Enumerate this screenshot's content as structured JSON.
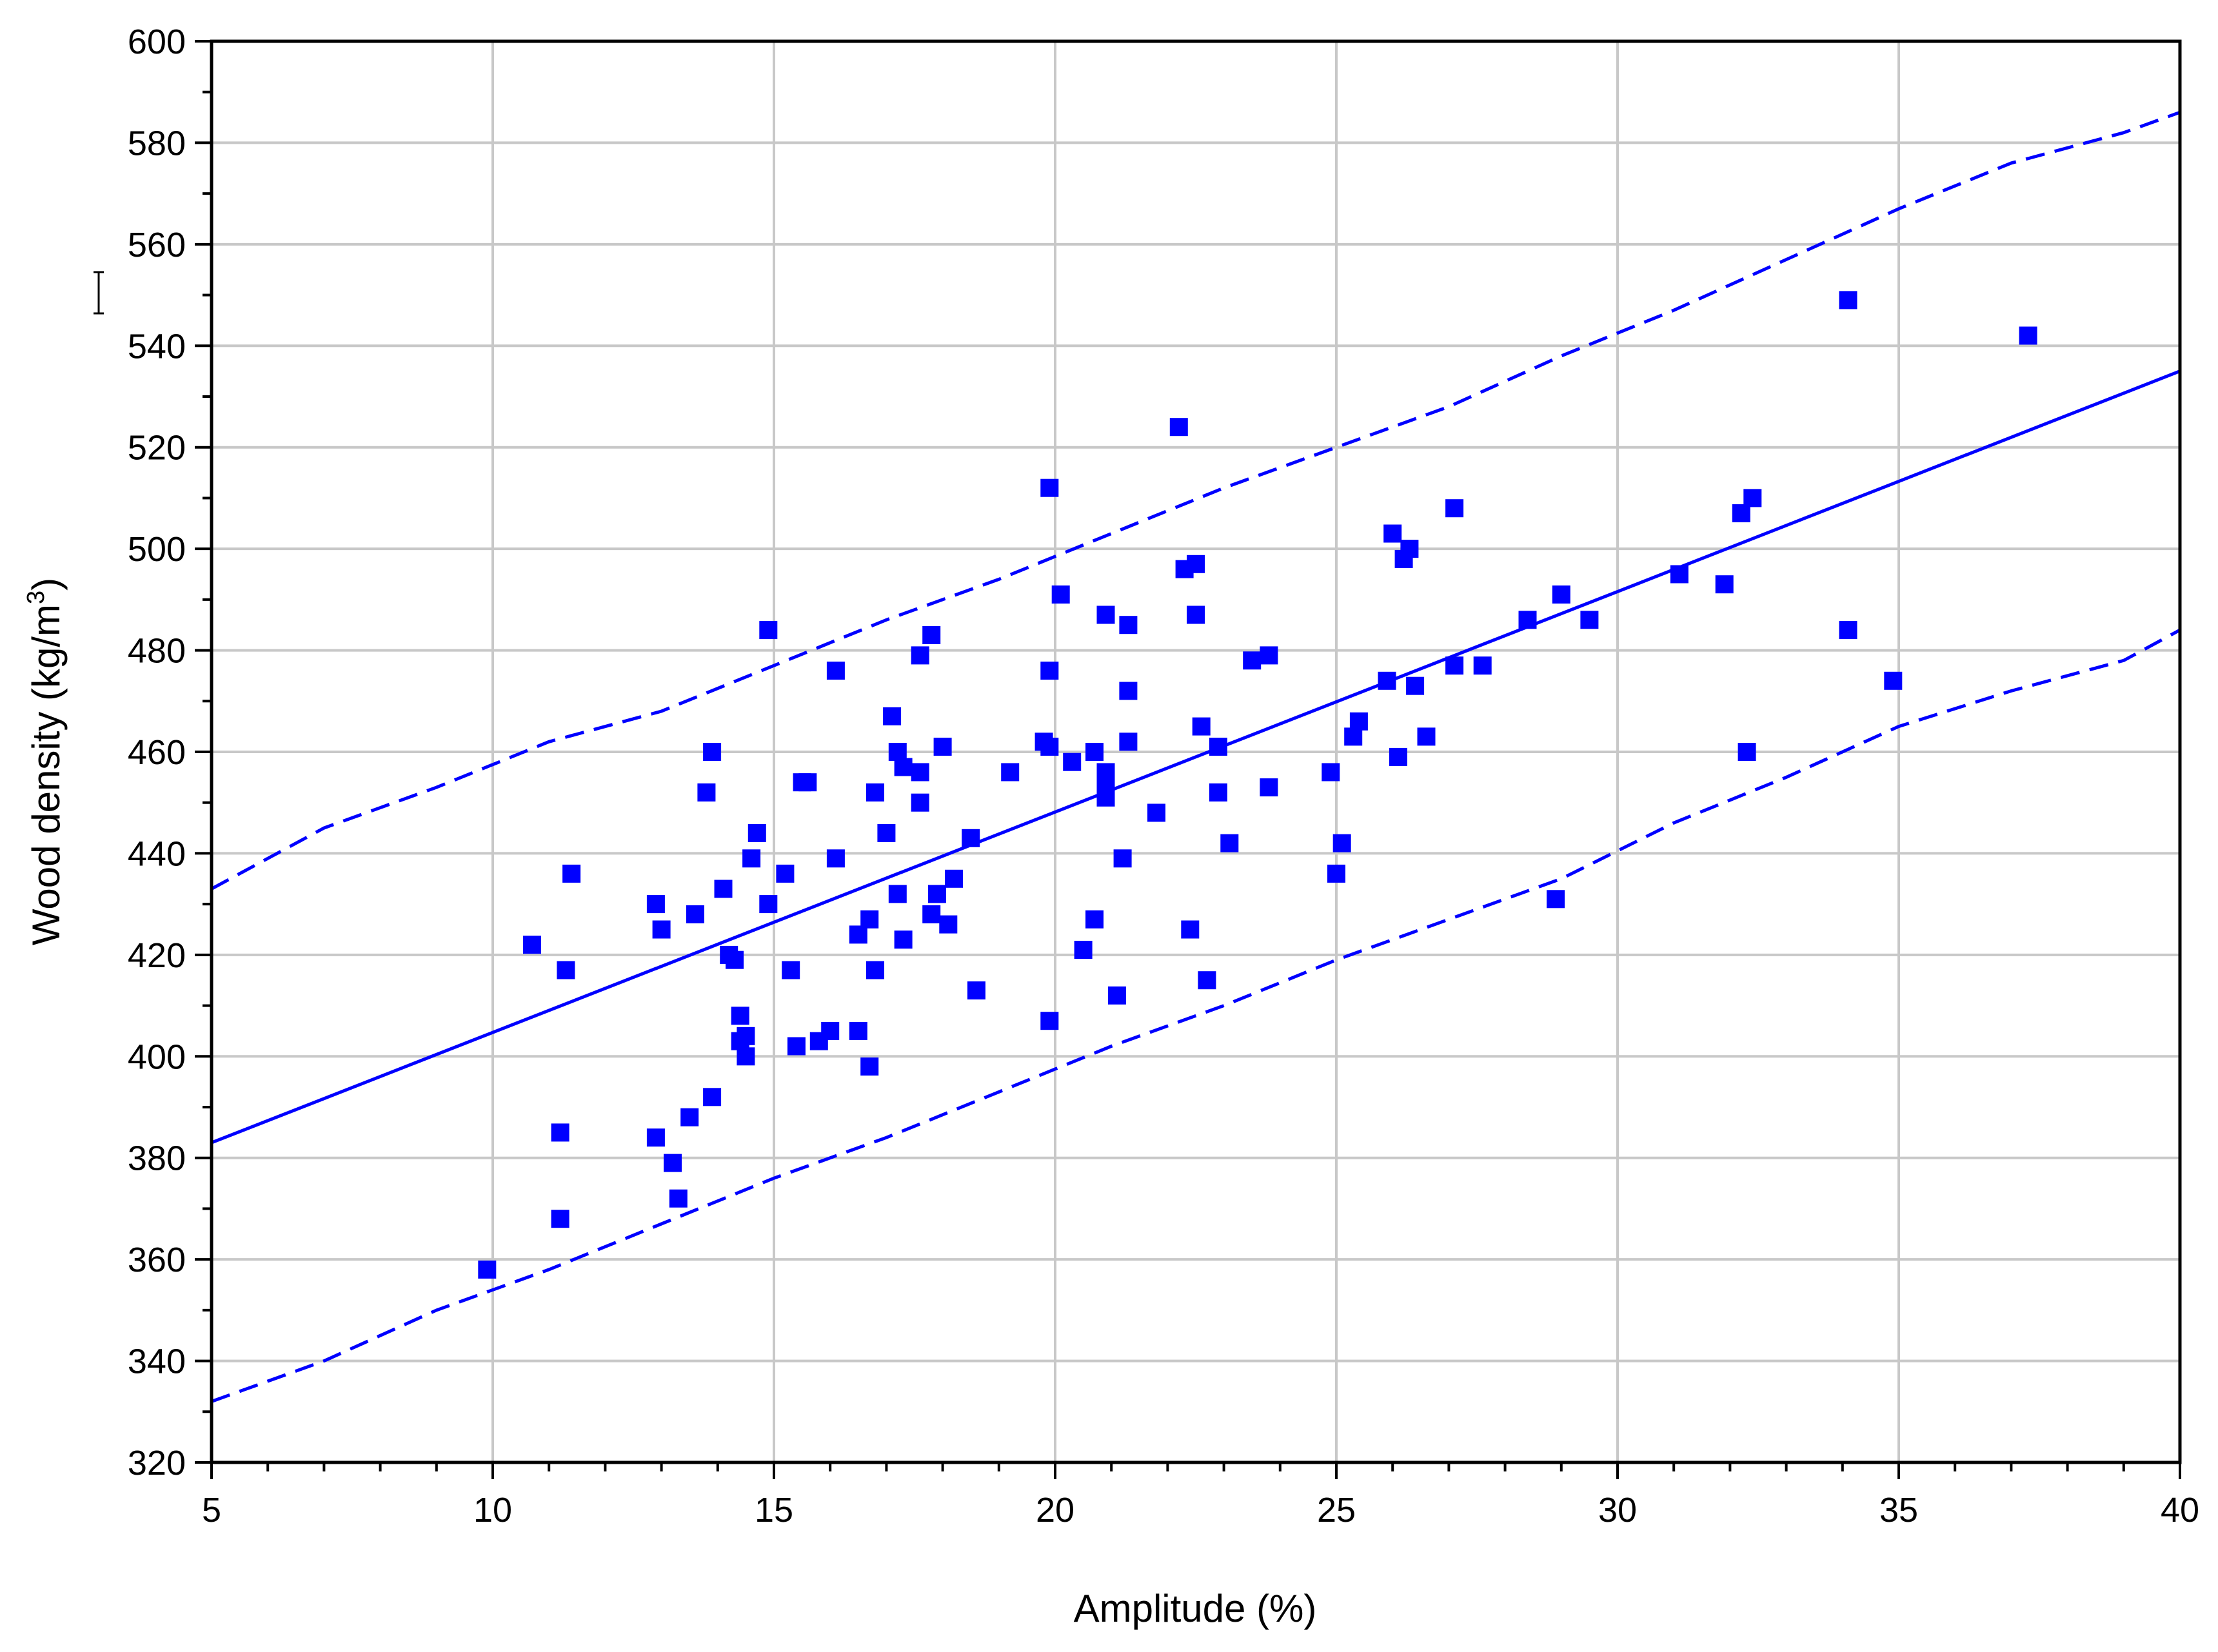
{
  "chart_data": {
    "type": "scatter",
    "title": "",
    "xlabel": "Amplitude (%)",
    "ylabel_prefix": "Wood density (kg/m",
    "ylabel_sup": "3",
    "ylabel_suffix": ")",
    "xlim": [
      5,
      40
    ],
    "ylim": [
      320,
      600
    ],
    "xticks": [
      5,
      10,
      15,
      20,
      25,
      30,
      35,
      40
    ],
    "yticks": [
      320,
      340,
      360,
      380,
      400,
      420,
      440,
      460,
      480,
      500,
      520,
      540,
      560,
      580,
      600
    ],
    "grid": true,
    "marker_color": "#0000ff",
    "line_color": "#0000ff",
    "fit_line": {
      "x": [
        5,
        40
      ],
      "y": [
        383,
        535
      ]
    },
    "upper_band": {
      "x": [
        5,
        7,
        9,
        11,
        13,
        15,
        17,
        19,
        21,
        23,
        25,
        27,
        29,
        31,
        33,
        35,
        37,
        39,
        40
      ],
      "y": [
        433,
        445,
        453,
        462,
        468,
        477,
        486,
        494,
        503,
        512,
        520,
        528,
        538,
        547,
        557,
        567,
        576,
        582,
        586
      ]
    },
    "lower_band": {
      "x": [
        5,
        7,
        9,
        11,
        13,
        15,
        17,
        19,
        21,
        23,
        25,
        27,
        29,
        31,
        33,
        35,
        37,
        39,
        40
      ],
      "y": [
        332,
        340,
        350,
        358,
        367,
        376,
        384,
        393,
        402,
        410,
        419,
        427,
        435,
        446,
        455,
        465,
        472,
        478,
        484
      ]
    },
    "points": [
      [
        9.9,
        358
      ],
      [
        10.7,
        422
      ],
      [
        11.2,
        385
      ],
      [
        11.2,
        368
      ],
      [
        11.3,
        417
      ],
      [
        11.4,
        436
      ],
      [
        12.9,
        430
      ],
      [
        13.0,
        425
      ],
      [
        12.9,
        384
      ],
      [
        13.2,
        379
      ],
      [
        13.3,
        372
      ],
      [
        13.5,
        388
      ],
      [
        13.6,
        428
      ],
      [
        13.8,
        452
      ],
      [
        13.9,
        460
      ],
      [
        13.9,
        392
      ],
      [
        14.1,
        433
      ],
      [
        14.2,
        420
      ],
      [
        14.3,
        419
      ],
      [
        14.4,
        408
      ],
      [
        14.4,
        403
      ],
      [
        14.5,
        400
      ],
      [
        14.5,
        404
      ],
      [
        14.6,
        439
      ],
      [
        14.7,
        444
      ],
      [
        14.9,
        430
      ],
      [
        14.9,
        484
      ],
      [
        15.2,
        436
      ],
      [
        15.3,
        417
      ],
      [
        15.4,
        402
      ],
      [
        15.5,
        454
      ],
      [
        15.6,
        454
      ],
      [
        15.8,
        403
      ],
      [
        16.0,
        405
      ],
      [
        16.1,
        439
      ],
      [
        16.1,
        476
      ],
      [
        16.5,
        424
      ],
      [
        16.5,
        405
      ],
      [
        16.7,
        427
      ],
      [
        16.7,
        398
      ],
      [
        16.8,
        452
      ],
      [
        16.8,
        417
      ],
      [
        17.0,
        444
      ],
      [
        17.1,
        467
      ],
      [
        17.2,
        432
      ],
      [
        17.2,
        460
      ],
      [
        17.3,
        457
      ],
      [
        17.3,
        423
      ],
      [
        17.6,
        479
      ],
      [
        17.6,
        456
      ],
      [
        17.6,
        450
      ],
      [
        17.8,
        428
      ],
      [
        17.8,
        483
      ],
      [
        17.9,
        432
      ],
      [
        18.0,
        461
      ],
      [
        18.1,
        426
      ],
      [
        18.2,
        435
      ],
      [
        18.5,
        443
      ],
      [
        18.6,
        413
      ],
      [
        19.2,
        456
      ],
      [
        19.8,
        462
      ],
      [
        19.9,
        512
      ],
      [
        19.9,
        476
      ],
      [
        19.9,
        461
      ],
      [
        19.9,
        407
      ],
      [
        20.1,
        491
      ],
      [
        20.3,
        458
      ],
      [
        20.5,
        421
      ],
      [
        20.7,
        460
      ],
      [
        20.7,
        427
      ],
      [
        20.9,
        487
      ],
      [
        20.9,
        456
      ],
      [
        20.9,
        454
      ],
      [
        20.9,
        451
      ],
      [
        21.1,
        412
      ],
      [
        21.2,
        439
      ],
      [
        21.3,
        485
      ],
      [
        21.3,
        472
      ],
      [
        21.3,
        462
      ],
      [
        21.8,
        448
      ],
      [
        22.2,
        524
      ],
      [
        22.3,
        496
      ],
      [
        22.4,
        425
      ],
      [
        22.5,
        497
      ],
      [
        22.5,
        487
      ],
      [
        22.6,
        465
      ],
      [
        22.7,
        415
      ],
      [
        22.9,
        461
      ],
      [
        22.9,
        452
      ],
      [
        23.1,
        442
      ],
      [
        23.5,
        478
      ],
      [
        23.8,
        479
      ],
      [
        23.8,
        453
      ],
      [
        24.9,
        456
      ],
      [
        25.0,
        436
      ],
      [
        25.1,
        442
      ],
      [
        25.3,
        463
      ],
      [
        25.4,
        466
      ],
      [
        25.9,
        474
      ],
      [
        26.0,
        503
      ],
      [
        26.1,
        459
      ],
      [
        26.2,
        498
      ],
      [
        26.3,
        500
      ],
      [
        26.4,
        473
      ],
      [
        26.6,
        463
      ],
      [
        27.1,
        508
      ],
      [
        27.1,
        477
      ],
      [
        27.6,
        477
      ],
      [
        28.4,
        486
      ],
      [
        28.9,
        431
      ],
      [
        29.0,
        491
      ],
      [
        29.5,
        486
      ],
      [
        31.1,
        495
      ],
      [
        31.9,
        493
      ],
      [
        32.2,
        507
      ],
      [
        32.3,
        460
      ],
      [
        32.4,
        510
      ],
      [
        34.1,
        549
      ],
      [
        34.1,
        484
      ],
      [
        34.9,
        474
      ],
      [
        37.3,
        542
      ]
    ]
  }
}
